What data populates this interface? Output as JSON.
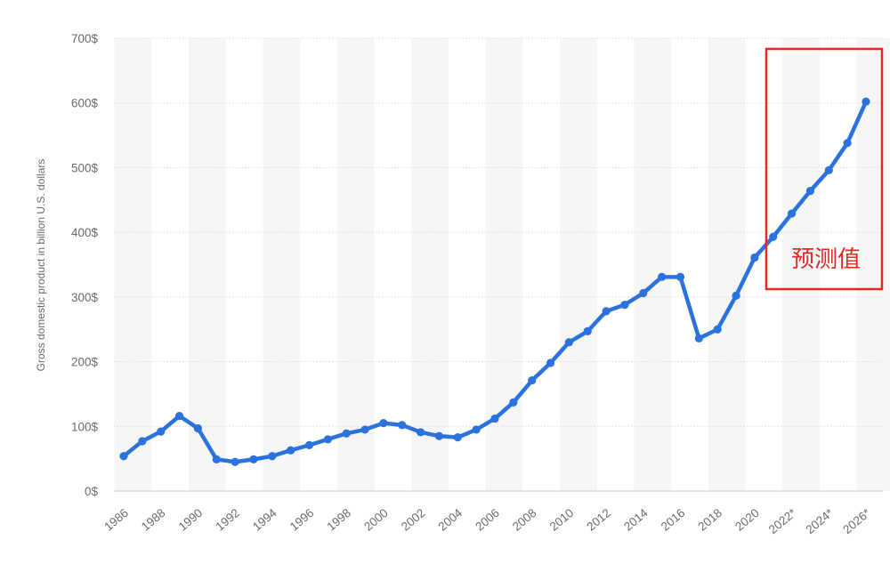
{
  "chart_data": {
    "type": "line",
    "ylabel": "Gross domestic product in billion U.S. dollars",
    "xlabel": "",
    "ylim": [
      0,
      700
    ],
    "y_ticks": [
      0,
      100,
      200,
      300,
      400,
      500,
      600,
      700
    ],
    "y_tick_suffix": "$",
    "grid": true,
    "x_tick_labels": [
      "1986",
      "1988",
      "1990",
      "1992",
      "1994",
      "1996",
      "1998",
      "2000",
      "2002",
      "2004",
      "2006",
      "2008",
      "2010",
      "2012",
      "2014",
      "2016",
      "2018",
      "2020",
      "2022*",
      "2024*",
      "2026*"
    ],
    "x": [
      1986,
      1987,
      1988,
      1989,
      1990,
      1991,
      1992,
      1993,
      1994,
      1995,
      1996,
      1997,
      1998,
      1999,
      2000,
      2001,
      2002,
      2003,
      2004,
      2005,
      2006,
      2007,
      2008,
      2009,
      2010,
      2011,
      2012,
      2013,
      2014,
      2015,
      2016,
      2017,
      2018,
      2019,
      2020,
      2021,
      2022,
      2023,
      2024,
      2025,
      2026
    ],
    "series": [
      {
        "values": [
          54,
          77,
          92,
          116,
          97,
          49,
          45,
          49,
          54,
          63,
          71,
          80,
          89,
          95,
          105,
          102,
          91,
          85,
          83,
          95,
          112,
          137,
          171,
          198,
          230,
          247,
          278,
          288,
          306,
          331,
          331,
          236,
          250,
          302,
          361,
          393,
          429,
          464,
          496,
          538,
          602
        ],
        "color": "#2a72de"
      }
    ],
    "annotation": {
      "text": "预测值",
      "color": "#e8251f"
    }
  }
}
